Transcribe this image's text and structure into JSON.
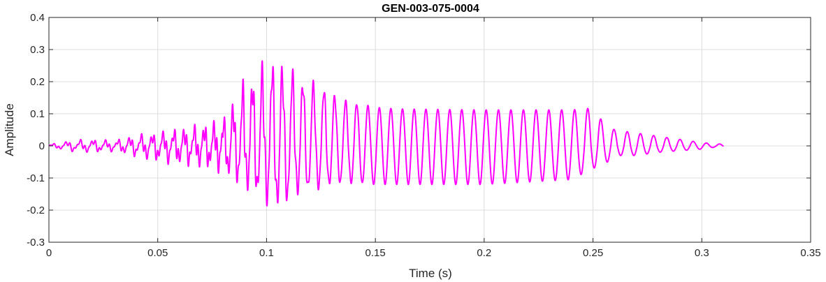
{
  "chart_data": {
    "type": "line",
    "title": "GEN-003-075-0004",
    "xlabel": "Time (s)",
    "ylabel": "Amplitude",
    "xlim": [
      0,
      0.35
    ],
    "ylim": [
      -0.3,
      0.4
    ],
    "xticks": [
      0,
      0.05,
      0.1,
      0.15,
      0.2,
      0.25,
      0.3,
      0.35
    ],
    "xtick_labels": [
      "0",
      "0.05",
      "0.1",
      "0.15",
      "0.2",
      "0.25",
      "0.3",
      "0.35"
    ],
    "yticks": [
      -0.3,
      -0.2,
      -0.1,
      0,
      0.1,
      0.2,
      0.3,
      0.4
    ],
    "ytick_labels": [
      "-0.3",
      "-0.2",
      "-0.1",
      "0",
      "0.1",
      "0.2",
      "0.3",
      "0.4"
    ],
    "grid": true,
    "series": [
      {
        "color": "#ff00ff",
        "x_start": 0,
        "x_end": 0.31,
        "envelope": [
          {
            "t": 0.0,
            "max": 0.005,
            "min": -0.005
          },
          {
            "t": 0.01,
            "max": 0.02,
            "min": -0.02
          },
          {
            "t": 0.02,
            "max": 0.025,
            "min": -0.025
          },
          {
            "t": 0.03,
            "max": 0.02,
            "min": -0.02
          },
          {
            "t": 0.04,
            "max": 0.04,
            "min": -0.04
          },
          {
            "t": 0.05,
            "max": 0.05,
            "min": -0.06
          },
          {
            "t": 0.06,
            "max": 0.065,
            "min": -0.07
          },
          {
            "t": 0.07,
            "max": 0.08,
            "min": -0.08
          },
          {
            "t": 0.08,
            "max": 0.1,
            "min": -0.1
          },
          {
            "t": 0.09,
            "max": 0.24,
            "min": -0.15
          },
          {
            "t": 0.1,
            "max": 0.3,
            "min": -0.2
          },
          {
            "t": 0.105,
            "max": 0.3,
            "min": -0.22
          },
          {
            "t": 0.115,
            "max": 0.24,
            "min": -0.16
          },
          {
            "t": 0.125,
            "max": 0.2,
            "min": -0.14
          },
          {
            "t": 0.135,
            "max": 0.15,
            "min": -0.12
          },
          {
            "t": 0.15,
            "max": 0.12,
            "min": -0.12
          },
          {
            "t": 0.16,
            "max": 0.115,
            "min": -0.12
          },
          {
            "t": 0.2,
            "max": 0.112,
            "min": -0.12
          },
          {
            "t": 0.24,
            "max": 0.112,
            "min": -0.105
          },
          {
            "t": 0.25,
            "max": 0.118,
            "min": -0.07
          },
          {
            "t": 0.255,
            "max": 0.07,
            "min": -0.06
          },
          {
            "t": 0.26,
            "max": 0.05,
            "min": -0.03
          },
          {
            "t": 0.27,
            "max": 0.04,
            "min": -0.03
          },
          {
            "t": 0.28,
            "max": 0.03,
            "min": -0.02
          },
          {
            "t": 0.29,
            "max": 0.02,
            "min": -0.015
          },
          {
            "t": 0.3,
            "max": 0.01,
            "min": -0.01
          },
          {
            "t": 0.31,
            "max": 0.005,
            "min": 0
          }
        ]
      }
    ]
  }
}
